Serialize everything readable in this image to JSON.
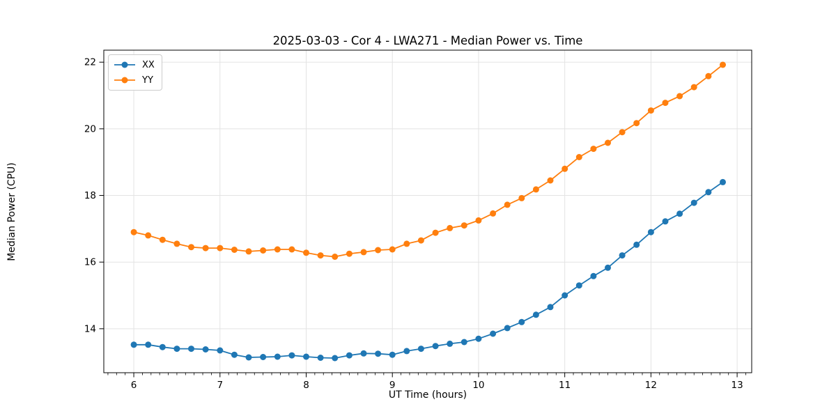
{
  "chart_data": {
    "type": "line",
    "title": "2025-03-03 - Cor 4 - LWA271 - Median Power vs. Time",
    "xlabel": "UT Time (hours)",
    "ylabel": "Median Power (CPU)",
    "xlim": [
      5.652,
      13.169
    ],
    "ylim": [
      12.68,
      22.36
    ],
    "xticks": [
      6,
      7,
      8,
      9,
      10,
      11,
      12,
      13
    ],
    "yticks": [
      14,
      16,
      18,
      20,
      22
    ],
    "x_minor_tick_step": 0.1,
    "grid": true,
    "legend_position": "upper left",
    "grid_color": "#e3e3e3",
    "spine_color": "#000000",
    "x": [
      6,
      6.1667,
      6.3333,
      6.5,
      6.6667,
      6.8333,
      7,
      7.1667,
      7.3333,
      7.5,
      7.6667,
      7.8333,
      8,
      8.1667,
      8.3333,
      8.5,
      8.6667,
      8.8333,
      9,
      9.1667,
      9.3333,
      9.5,
      9.6667,
      9.8333,
      10,
      10.1667,
      10.3333,
      10.5,
      10.6667,
      10.8333,
      11,
      11.1667,
      11.3333,
      11.5,
      11.6667,
      11.8333,
      12,
      12.1667,
      12.3333,
      12.5,
      12.6667,
      12.8333
    ],
    "series": [
      {
        "name": "XX",
        "color": "#1f77b4",
        "values": [
          13.52,
          13.52,
          13.45,
          13.4,
          13.4,
          13.38,
          13.35,
          13.22,
          13.14,
          13.15,
          13.16,
          13.2,
          13.16,
          13.13,
          13.12,
          13.2,
          13.26,
          13.25,
          13.22,
          13.33,
          13.4,
          13.48,
          13.55,
          13.6,
          13.7,
          13.85,
          14.02,
          14.2,
          14.42,
          14.65,
          15.0,
          15.3,
          15.58,
          15.83,
          16.2,
          16.52,
          16.9,
          17.22,
          17.45,
          17.78,
          18.1,
          18.4
        ]
      },
      {
        "name": "YY",
        "color": "#ff7f0e",
        "values": [
          16.9,
          16.8,
          16.67,
          16.55,
          16.45,
          16.42,
          16.42,
          16.37,
          16.32,
          16.35,
          16.38,
          16.38,
          16.28,
          16.2,
          16.16,
          16.25,
          16.3,
          16.36,
          16.38,
          16.55,
          16.65,
          16.88,
          17.02,
          17.1,
          17.25,
          17.46,
          17.72,
          17.92,
          18.18,
          18.45,
          18.8,
          19.15,
          19.4,
          19.58,
          19.9,
          20.17,
          20.55,
          20.78,
          20.98,
          21.25,
          21.58,
          21.92
        ]
      }
    ]
  }
}
